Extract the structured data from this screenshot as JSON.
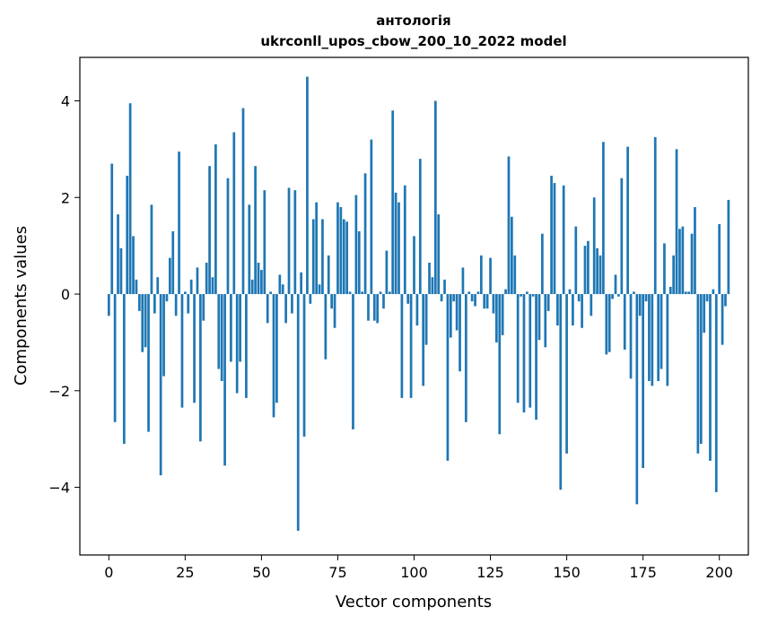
{
  "chart_data": {
    "type": "bar",
    "title_line1": "антологія",
    "title_line2": "ukrconll_upos_cbow_200_10_2022 model",
    "xlabel": "Vector components",
    "ylabel": "Components values",
    "xlim": [
      -9.5,
      209.5
    ],
    "ylim": [
      -5.4,
      4.9
    ],
    "x_ticks": [
      0,
      25,
      50,
      75,
      100,
      125,
      150,
      175,
      200
    ],
    "y_ticks": [
      -4,
      -2,
      0,
      2,
      4
    ],
    "y_tick_labels": [
      "−4",
      "−2",
      "0",
      "2",
      "4"
    ],
    "bar_color": "#1f77b4",
    "grid": false,
    "legend": "none",
    "values": [
      -0.45,
      2.7,
      -2.65,
      1.65,
      0.95,
      -3.1,
      2.45,
      3.95,
      1.2,
      0.3,
      -0.35,
      -1.2,
      -1.1,
      -2.85,
      1.85,
      -0.4,
      0.35,
      -3.75,
      -1.7,
      -0.15,
      0.75,
      1.3,
      -0.45,
      2.95,
      -2.35,
      0.05,
      -0.4,
      0.3,
      -2.25,
      0.55,
      -3.05,
      -0.55,
      0.65,
      2.65,
      0.35,
      3.1,
      -1.55,
      -1.8,
      -3.55,
      2.4,
      -1.4,
      3.35,
      -2.05,
      -1.4,
      3.85,
      -2.15,
      1.85,
      0.3,
      2.65,
      0.65,
      0.5,
      2.15,
      -0.6,
      0.05,
      -2.55,
      -2.25,
      0.4,
      0.2,
      -0.6,
      2.2,
      -0.4,
      2.15,
      -4.9,
      0.45,
      -2.95,
      4.5,
      -0.2,
      1.55,
      1.9,
      0.2,
      1.55,
      -1.35,
      0.8,
      -0.3,
      -0.7,
      1.9,
      1.8,
      1.55,
      1.5,
      0.05,
      -2.8,
      2.05,
      1.3,
      0.05,
      2.5,
      -0.55,
      3.2,
      -0.55,
      -0.6,
      0.05,
      -0.3,
      0.9,
      0.05,
      3.8,
      2.1,
      1.9,
      -2.15,
      2.25,
      -0.2,
      -2.15,
      1.2,
      -0.65,
      2.8,
      -1.9,
      -1.05,
      0.65,
      0.35,
      4.0,
      1.65,
      -0.15,
      0.3,
      -3.45,
      -0.9,
      -0.15,
      -0.75,
      -1.6,
      0.55,
      -2.65,
      0.05,
      -0.15,
      -0.25,
      0.05,
      0.8,
      -0.3,
      -0.3,
      0.75,
      -0.4,
      -1.0,
      -2.9,
      -0.85,
      0.1,
      2.85,
      1.6,
      0.8,
      -2.25,
      -0.05,
      -2.45,
      0.05,
      -2.35,
      -0.05,
      -2.6,
      -0.95,
      1.25,
      -1.1,
      -0.35,
      2.45,
      2.3,
      -0.65,
      -4.05,
      2.25,
      -3.3,
      0.1,
      -0.65,
      1.4,
      -0.15,
      -0.7,
      1.0,
      1.1,
      -0.45,
      2.0,
      0.95,
      0.8,
      3.15,
      -1.25,
      -1.2,
      -0.1,
      0.4,
      -0.05,
      2.4,
      -1.15,
      3.05,
      -1.75,
      0.05,
      -4.35,
      -0.45,
      -3.6,
      -0.15,
      -1.8,
      -1.9,
      3.25,
      -1.8,
      -1.55,
      1.05,
      -1.9,
      0.15,
      0.8,
      3.0,
      1.35,
      1.4,
      0.05,
      0.05,
      1.25,
      1.8,
      -3.3,
      -3.1,
      -0.8,
      -0.15,
      -3.45,
      0.1,
      -4.1,
      1.45,
      -1.05,
      -0.25,
      1.95
    ]
  }
}
